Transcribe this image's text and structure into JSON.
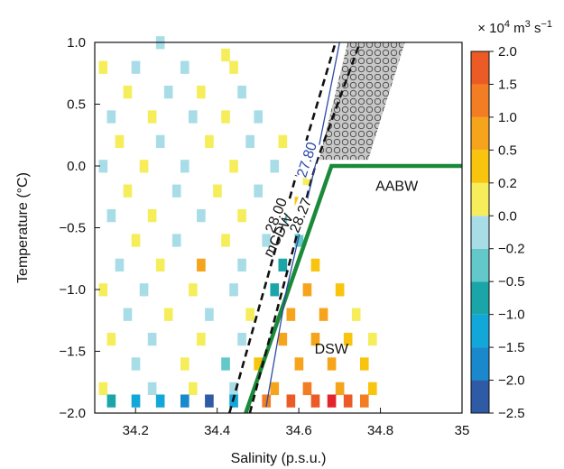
{
  "chart_data": {
    "type": "heatmap",
    "xlabel": "Salinity (p.s.u.)",
    "ylabel": "Temperature (°C)",
    "xlim": [
      34.1,
      35.0
    ],
    "ylim": [
      -2.0,
      1.0
    ],
    "xticks": [
      "34.2",
      "34.4",
      "34.6",
      "34.8",
      "35"
    ],
    "xtick_values": [
      34.2,
      34.4,
      34.6,
      34.8,
      35.0
    ],
    "yticks": [
      "1.0",
      "0.5",
      "0.0",
      "−0.5",
      "−1.0",
      "−1.5",
      "−2.0"
    ],
    "ytick_values": [
      1.0,
      0.5,
      0.0,
      -0.5,
      -1.0,
      -1.5,
      -2.0
    ],
    "grid": false,
    "colorbar": {
      "unit_prefix": "× 10",
      "unit_exp": "4",
      "unit_mid": " m",
      "unit_exp2": "3",
      "unit_mid2": " s",
      "unit_exp3": "−1",
      "labels": [
        "2.0",
        "1.5",
        "1.0",
        "0.5",
        "0.2",
        "0.0",
        "−0.2",
        "−0.5",
        "−1.0",
        "−1.5",
        "−2.0",
        "−2.5"
      ],
      "label_values": [
        2.0,
        1.5,
        1.0,
        0.5,
        0.2,
        0.0,
        -0.2,
        -0.5,
        -1.0,
        -1.5,
        -2.0,
        -2.5
      ],
      "bins": [
        {
          "from": -2.5,
          "to": -2.0,
          "color": "#2e5aa6"
        },
        {
          "from": -2.0,
          "to": -1.5,
          "color": "#1a88cc"
        },
        {
          "from": -1.5,
          "to": -1.0,
          "color": "#12a7d9"
        },
        {
          "from": -1.0,
          "to": -0.5,
          "color": "#1aa6a8"
        },
        {
          "from": -0.5,
          "to": -0.2,
          "color": "#62c8c9"
        },
        {
          "from": -0.2,
          "to": 0.0,
          "color": "#a8dde8"
        },
        {
          "from": 0.0,
          "to": 0.2,
          "color": "#f5ee5a"
        },
        {
          "from": 0.2,
          "to": 0.5,
          "color": "#f9c40e"
        },
        {
          "from": 0.5,
          "to": 1.0,
          "color": "#f6a41b"
        },
        {
          "from": 1.0,
          "to": 1.5,
          "color": "#f27d22"
        },
        {
          "from": 1.5,
          "to": 2.0,
          "color": "#ec5a25"
        },
        {
          "from": 2.0,
          "to": 2.5,
          "color": "#e2252c"
        }
      ]
    },
    "isopycnals": [
      {
        "label": "28.00",
        "style": "dashed",
        "color": "#111111",
        "points": [
          [
            34.43,
            -2.0
          ],
          [
            34.6,
            0.0
          ],
          [
            34.69,
            1.0
          ]
        ]
      },
      {
        "label": "28.27",
        "style": "dashed",
        "color": "#111111",
        "points": [
          [
            34.48,
            -2.0
          ],
          [
            34.64,
            0.0
          ],
          [
            34.75,
            1.0
          ]
        ]
      },
      {
        "label": "27.80",
        "style": "solid",
        "color": "#2c49a8",
        "points": [
          [
            34.52,
            -1.95
          ],
          [
            34.57,
            -1.0
          ],
          [
            34.64,
            0.0
          ],
          [
            34.7,
            1.0
          ]
        ]
      }
    ],
    "water_mass_boundary": {
      "label": "AABW",
      "color": "#1a8a3a",
      "points": [
        [
          34.47,
          -2.0
        ],
        [
          34.68,
          0.0
        ],
        [
          35.0,
          0.0
        ]
      ]
    },
    "hatched_region": {
      "color": "#c8c8c8",
      "points": [
        [
          34.72,
          1.0
        ],
        [
          34.86,
          1.0
        ],
        [
          34.77,
          0.05
        ],
        [
          34.65,
          0.05
        ]
      ]
    },
    "annotations": [
      {
        "text": "mCDW",
        "x": 34.56,
        "y": -0.58,
        "rotate": -62
      },
      {
        "text": "DSW",
        "x": 34.68,
        "y": -1.52,
        "rotate": 0
      },
      {
        "text": "AABW",
        "x": 34.84,
        "y": -0.2,
        "rotate": 0
      }
    ],
    "grid_resolution": {
      "ds": 0.02,
      "dt": 0.1
    },
    "cells": [
      {
        "s": 34.26,
        "t": 1.0,
        "v": -0.1
      },
      {
        "s": 34.42,
        "t": 0.9,
        "v": 0.1
      },
      {
        "s": 34.12,
        "t": 0.8,
        "v": 0.1
      },
      {
        "s": 34.2,
        "t": 0.8,
        "v": -0.1
      },
      {
        "s": 34.32,
        "t": 0.8,
        "v": -0.1
      },
      {
        "s": 34.44,
        "t": 0.8,
        "v": 0.1
      },
      {
        "s": 34.18,
        "t": 0.6,
        "v": 0.1
      },
      {
        "s": 34.28,
        "t": 0.6,
        "v": -0.1
      },
      {
        "s": 34.36,
        "t": 0.6,
        "v": 0.1
      },
      {
        "s": 34.46,
        "t": 0.6,
        "v": -0.1
      },
      {
        "s": 34.14,
        "t": 0.4,
        "v": -0.1
      },
      {
        "s": 34.24,
        "t": 0.4,
        "v": 0.1
      },
      {
        "s": 34.34,
        "t": 0.4,
        "v": -0.1
      },
      {
        "s": 34.42,
        "t": 0.4,
        "v": 0.1
      },
      {
        "s": 34.5,
        "t": 0.4,
        "v": -0.1
      },
      {
        "s": 34.16,
        "t": 0.2,
        "v": 0.1
      },
      {
        "s": 34.26,
        "t": 0.2,
        "v": -0.1
      },
      {
        "s": 34.38,
        "t": 0.2,
        "v": 0.1
      },
      {
        "s": 34.48,
        "t": 0.2,
        "v": -0.1
      },
      {
        "s": 34.56,
        "t": 0.2,
        "v": 0.1
      },
      {
        "s": 34.12,
        "t": 0.0,
        "v": -0.1
      },
      {
        "s": 34.22,
        "t": 0.0,
        "v": 0.1
      },
      {
        "s": 34.32,
        "t": 0.0,
        "v": -0.1
      },
      {
        "s": 34.44,
        "t": 0.0,
        "v": 0.1
      },
      {
        "s": 34.54,
        "t": 0.0,
        "v": -0.1
      },
      {
        "s": 34.62,
        "t": -0.1,
        "v": 0.1
      },
      {
        "s": 34.18,
        "t": -0.2,
        "v": 0.1
      },
      {
        "s": 34.3,
        "t": -0.2,
        "v": -0.1
      },
      {
        "s": 34.4,
        "t": -0.2,
        "v": 0.1
      },
      {
        "s": 34.5,
        "t": -0.2,
        "v": -0.1
      },
      {
        "s": 34.6,
        "t": -0.3,
        "v": 0.3
      },
      {
        "s": 34.14,
        "t": -0.4,
        "v": -0.1
      },
      {
        "s": 34.24,
        "t": -0.4,
        "v": 0.1
      },
      {
        "s": 34.36,
        "t": -0.4,
        "v": -0.1
      },
      {
        "s": 34.46,
        "t": -0.4,
        "v": 0.1
      },
      {
        "s": 34.56,
        "t": -0.4,
        "v": -0.3
      },
      {
        "s": 34.2,
        "t": -0.6,
        "v": 0.1
      },
      {
        "s": 34.3,
        "t": -0.6,
        "v": -0.1
      },
      {
        "s": 34.42,
        "t": -0.6,
        "v": 0.1
      },
      {
        "s": 34.52,
        "t": -0.6,
        "v": -0.1
      },
      {
        "s": 34.6,
        "t": -0.6,
        "v": -0.3
      },
      {
        "s": 34.16,
        "t": -0.8,
        "v": -0.1
      },
      {
        "s": 34.26,
        "t": -0.8,
        "v": 0.1
      },
      {
        "s": 34.36,
        "t": -0.8,
        "v": 0.7
      },
      {
        "s": 34.46,
        "t": -0.8,
        "v": -0.1
      },
      {
        "s": 34.56,
        "t": -0.8,
        "v": -0.7
      },
      {
        "s": 34.64,
        "t": -0.8,
        "v": 0.3
      },
      {
        "s": 34.12,
        "t": -1.0,
        "v": 0.1
      },
      {
        "s": 34.22,
        "t": -1.0,
        "v": -0.1
      },
      {
        "s": 34.34,
        "t": -1.0,
        "v": 0.1
      },
      {
        "s": 34.44,
        "t": -1.0,
        "v": -0.1
      },
      {
        "s": 34.54,
        "t": -1.0,
        "v": -0.7
      },
      {
        "s": 34.62,
        "t": -1.0,
        "v": 0.7
      },
      {
        "s": 34.7,
        "t": -1.0,
        "v": 0.3
      },
      {
        "s": 34.18,
        "t": -1.2,
        "v": -0.1
      },
      {
        "s": 34.28,
        "t": -1.2,
        "v": 0.1
      },
      {
        "s": 34.38,
        "t": -1.2,
        "v": -0.1
      },
      {
        "s": 34.48,
        "t": -1.2,
        "v": 0.1
      },
      {
        "s": 34.58,
        "t": -1.2,
        "v": 0.7
      },
      {
        "s": 34.66,
        "t": -1.2,
        "v": 0.7
      },
      {
        "s": 34.74,
        "t": -1.2,
        "v": 0.1
      },
      {
        "s": 34.14,
        "t": -1.4,
        "v": 0.1
      },
      {
        "s": 34.24,
        "t": -1.4,
        "v": -0.1
      },
      {
        "s": 34.36,
        "t": -1.4,
        "v": 0.1
      },
      {
        "s": 34.46,
        "t": -1.4,
        "v": -0.1
      },
      {
        "s": 34.56,
        "t": -1.4,
        "v": 0.7
      },
      {
        "s": 34.64,
        "t": -1.4,
        "v": 0.7
      },
      {
        "s": 34.72,
        "t": -1.4,
        "v": 0.3
      },
      {
        "s": 34.78,
        "t": -1.4,
        "v": 0.1
      },
      {
        "s": 34.2,
        "t": -1.6,
        "v": -0.1
      },
      {
        "s": 34.32,
        "t": -1.6,
        "v": 0.1
      },
      {
        "s": 34.42,
        "t": -1.6,
        "v": -0.3
      },
      {
        "s": 34.5,
        "t": -1.6,
        "v": 0.3
      },
      {
        "s": 34.6,
        "t": -1.6,
        "v": 0.7
      },
      {
        "s": 34.68,
        "t": -1.6,
        "v": 0.7
      },
      {
        "s": 34.76,
        "t": -1.6,
        "v": 0.3
      },
      {
        "s": 34.12,
        "t": -1.8,
        "v": 0.1
      },
      {
        "s": 34.24,
        "t": -1.8,
        "v": -0.1
      },
      {
        "s": 34.34,
        "t": -1.8,
        "v": 0.1
      },
      {
        "s": 34.44,
        "t": -1.8,
        "v": -0.1
      },
      {
        "s": 34.54,
        "t": -1.8,
        "v": 0.7
      },
      {
        "s": 34.62,
        "t": -1.8,
        "v": 1.2
      },
      {
        "s": 34.7,
        "t": -1.8,
        "v": 0.7
      },
      {
        "s": 34.78,
        "t": -1.8,
        "v": 0.3
      },
      {
        "s": 34.14,
        "t": -1.9,
        "v": -0.7
      },
      {
        "s": 34.2,
        "t": -1.9,
        "v": -1.2
      },
      {
        "s": 34.26,
        "t": -1.9,
        "v": -1.2
      },
      {
        "s": 34.32,
        "t": -1.9,
        "v": -1.7
      },
      {
        "s": 34.38,
        "t": -1.9,
        "v": -2.2
      },
      {
        "s": 34.44,
        "t": -1.9,
        "v": -1.2
      },
      {
        "s": 34.52,
        "t": -1.9,
        "v": 1.2
      },
      {
        "s": 34.58,
        "t": -1.9,
        "v": 1.7
      },
      {
        "s": 34.64,
        "t": -1.9,
        "v": 1.7
      },
      {
        "s": 34.68,
        "t": -1.9,
        "v": 2.2
      },
      {
        "s": 34.72,
        "t": -1.9,
        "v": 1.7
      },
      {
        "s": 34.76,
        "t": -1.9,
        "v": 1.2
      }
    ]
  }
}
